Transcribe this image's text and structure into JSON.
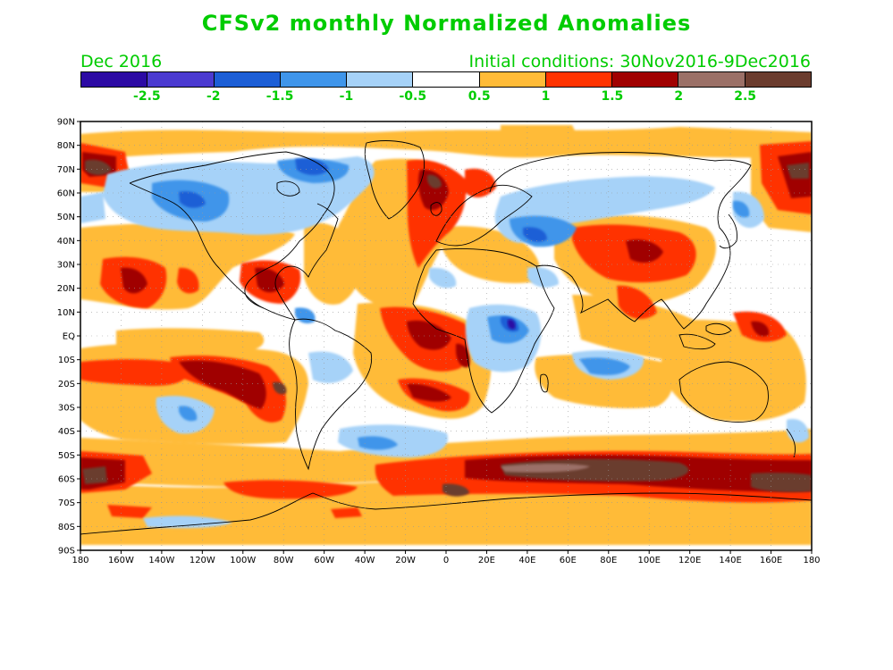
{
  "title": "CFSv2 monthly Normalized Anomalies",
  "subtitle_left": "Dec 2016",
  "subtitle_right": "Initial conditions: 30Nov2016-9Dec2016",
  "colorbar": {
    "colors": [
      "#2c0aa4",
      "#4b3ad0",
      "#1c5ed6",
      "#3f95ea",
      "#a6d2f8",
      "#ffffff",
      "#ffbb38",
      "#ff3300",
      "#a00000",
      "#9b7067",
      "#6b3c2e"
    ],
    "tick_labels": [
      "-2.5",
      "-2",
      "-1.5",
      "-1",
      "-0.5",
      "0.5",
      "1",
      "1.5",
      "2",
      "2.5"
    ]
  },
  "axes": {
    "lat_labels": [
      "90N",
      "80N",
      "70N",
      "60N",
      "50N",
      "40N",
      "30N",
      "20N",
      "10N",
      "EQ",
      "10S",
      "20S",
      "30S",
      "40S",
      "50S",
      "60S",
      "70S",
      "80S",
      "90S"
    ],
    "lon_labels": [
      "180",
      "160W",
      "140W",
      "120W",
      "100W",
      "80W",
      "60W",
      "40W",
      "20W",
      "0",
      "20E",
      "40E",
      "60E",
      "80E",
      "100E",
      "120E",
      "140E",
      "160E",
      "180"
    ]
  },
  "colors": {
    "title_green": "#00cc00",
    "map_border": "#000000",
    "coast": "#000000"
  }
}
